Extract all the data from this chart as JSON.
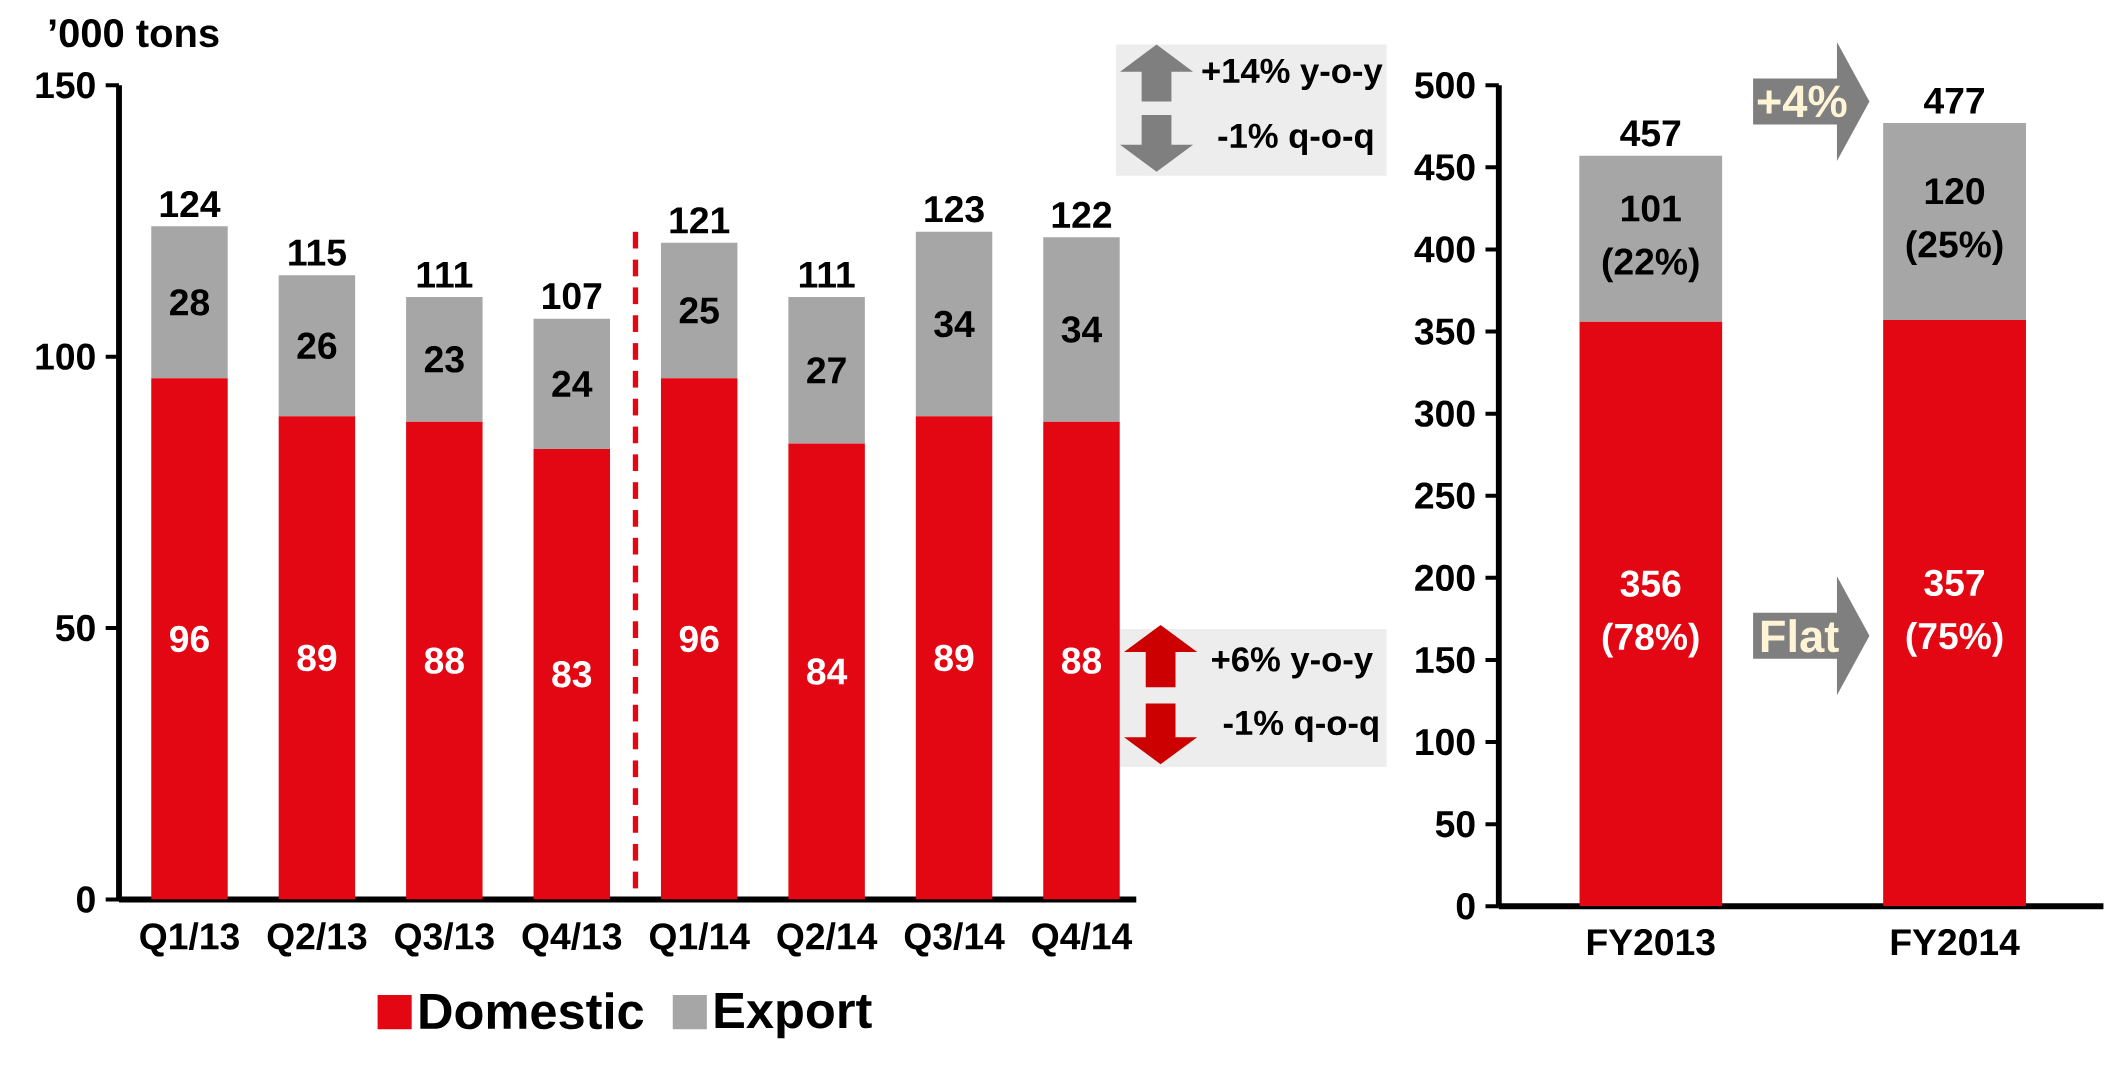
{
  "chart_data": [
    {
      "type": "bar",
      "stacked": true,
      "ylabel": "’000 tons",
      "categories": [
        "Q1/13",
        "Q2/13",
        "Q3/13",
        "Q4/13",
        "Q1/14",
        "Q2/14",
        "Q3/14",
        "Q4/14"
      ],
      "series": [
        {
          "name": "Domestic",
          "color": "#e30613",
          "values": [
            96,
            89,
            88,
            83,
            96,
            84,
            89,
            88
          ]
        },
        {
          "name": "Export",
          "color": "#a6a6a6",
          "values": [
            28,
            26,
            23,
            24,
            25,
            27,
            34,
            34
          ]
        }
      ],
      "totals": [
        "124",
        "115",
        "111",
        "107",
        "121",
        "111",
        "123",
        "122"
      ],
      "ylim": [
        0,
        150
      ],
      "yticks": [
        0,
        50,
        100,
        150
      ],
      "data_labels": true,
      "legend": "bottom",
      "annotations": [
        "+14% y-o-y",
        "-1% q-o-q",
        "+6% y-o-y",
        "-1% q-o-q"
      ]
    },
    {
      "type": "bar",
      "stacked": true,
      "categories": [
        "FY2013",
        "FY2014"
      ],
      "series": [
        {
          "color": "#e30613",
          "values": [
            356,
            357
          ],
          "value_labels": [
            "356 (78%)",
            "357 (75%)"
          ]
        },
        {
          "color": "#a6a6a6",
          "values": [
            101,
            120
          ],
          "value_labels": [
            "101 (22%)",
            "120 (25%)"
          ]
        }
      ],
      "totals": [
        "457",
        "477"
      ],
      "ylim": [
        0,
        500
      ],
      "yticks": [
        0,
        50,
        100,
        150,
        200,
        250,
        300,
        350,
        400,
        450,
        500
      ],
      "annotations": [
        "+4%",
        "Flat"
      ]
    }
  ]
}
